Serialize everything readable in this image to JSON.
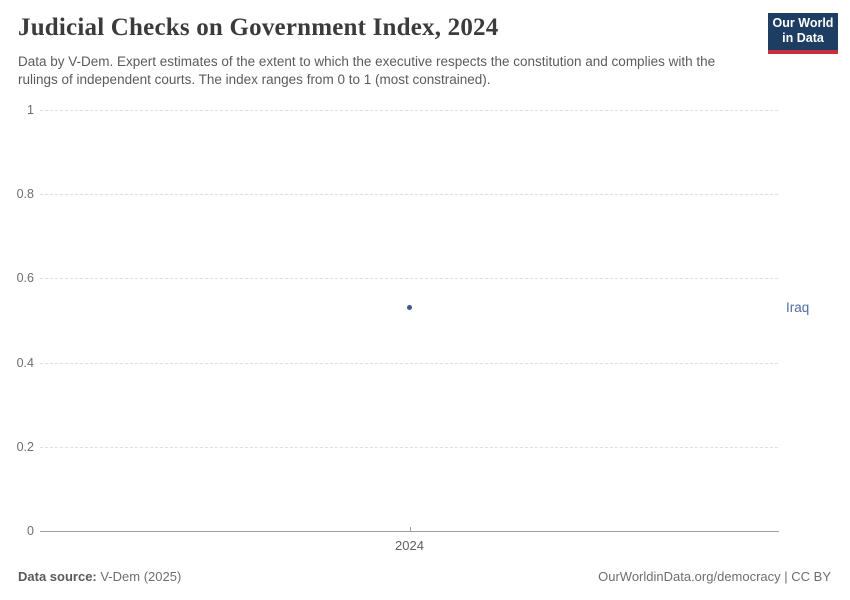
{
  "header": {
    "title": "Judicial Checks on Government Index, 2024",
    "subtitle": "Data by V-Dem. Expert estimates of the extent to which the executive respects the constitution and complies with the rulings of independent courts. The index ranges from 0 to 1 (most constrained).",
    "logo": {
      "line1": "Our World",
      "line2": "in Data"
    }
  },
  "chart_data": {
    "type": "scatter",
    "title": "Judicial Checks on Government Index, 2024",
    "x": [
      2024
    ],
    "xticks": [
      "2024"
    ],
    "series": [
      {
        "name": "Iraq",
        "values": [
          0.53
        ]
      }
    ],
    "xlabel": "",
    "ylabel": "",
    "ylim": [
      0,
      1
    ],
    "yticks": [
      0,
      0.2,
      0.4,
      0.6,
      0.8,
      1
    ],
    "grid": "horizontal-dashed",
    "legend_position": "right-entity-label",
    "point_color": "#3d5a96",
    "label_color": "#4e6ba6"
  },
  "colors": {
    "logo_navy": "#1d3d63",
    "logo_red": "#c5303e",
    "title_text": "#3b3b3b",
    "subtitle_text": "#5b5b5b",
    "axis_line": "#a0a0a0",
    "gridline": "#e0e0e0"
  },
  "footer": {
    "source_label": "Data source:",
    "source_value": "V-Dem (2025)",
    "right_text": "OurWorldinData.org/democracy | CC BY"
  }
}
